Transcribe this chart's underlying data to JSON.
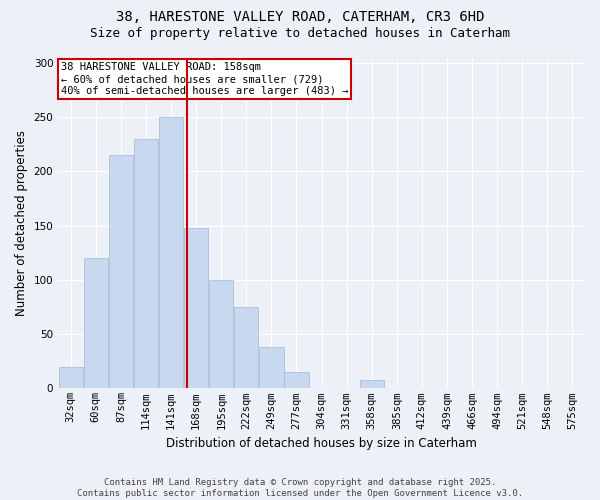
{
  "title_line1": "38, HARESTONE VALLEY ROAD, CATERHAM, CR3 6HD",
  "title_line2": "Size of property relative to detached houses in Caterham",
  "xlabel": "Distribution of detached houses by size in Caterham",
  "ylabel": "Number of detached properties",
  "bar_color": "#c8d8ee",
  "bar_edge_color": "#a0b8d8",
  "background_color": "#eef0f8",
  "grid_color": "#ffffff",
  "categories": [
    "32sqm",
    "60sqm",
    "87sqm",
    "114sqm",
    "141sqm",
    "168sqm",
    "195sqm",
    "222sqm",
    "249sqm",
    "277sqm",
    "304sqm",
    "331sqm",
    "358sqm",
    "385sqm",
    "412sqm",
    "439sqm",
    "466sqm",
    "494sqm",
    "521sqm",
    "548sqm",
    "575sqm"
  ],
  "values": [
    20,
    120,
    215,
    230,
    250,
    148,
    100,
    75,
    38,
    15,
    0,
    0,
    8,
    0,
    0,
    0,
    0,
    0,
    0,
    0,
    0
  ],
  "vline_position": 4.63,
  "vline_color": "#cc0000",
  "annotation_text": "38 HARESTONE VALLEY ROAD: 158sqm\n← 60% of detached houses are smaller (729)\n40% of semi-detached houses are larger (483) →",
  "annotation_box_color": "#cc0000",
  "ylim": [
    0,
    305
  ],
  "yticks": [
    0,
    50,
    100,
    150,
    200,
    250,
    300
  ],
  "footer_line1": "Contains HM Land Registry data © Crown copyright and database right 2025.",
  "footer_line2": "Contains public sector information licensed under the Open Government Licence v3.0.",
  "title_fontsize": 10,
  "subtitle_fontsize": 9,
  "axis_label_fontsize": 8.5,
  "tick_fontsize": 7.5,
  "annotation_fontsize": 7.5,
  "footer_fontsize": 6.5
}
